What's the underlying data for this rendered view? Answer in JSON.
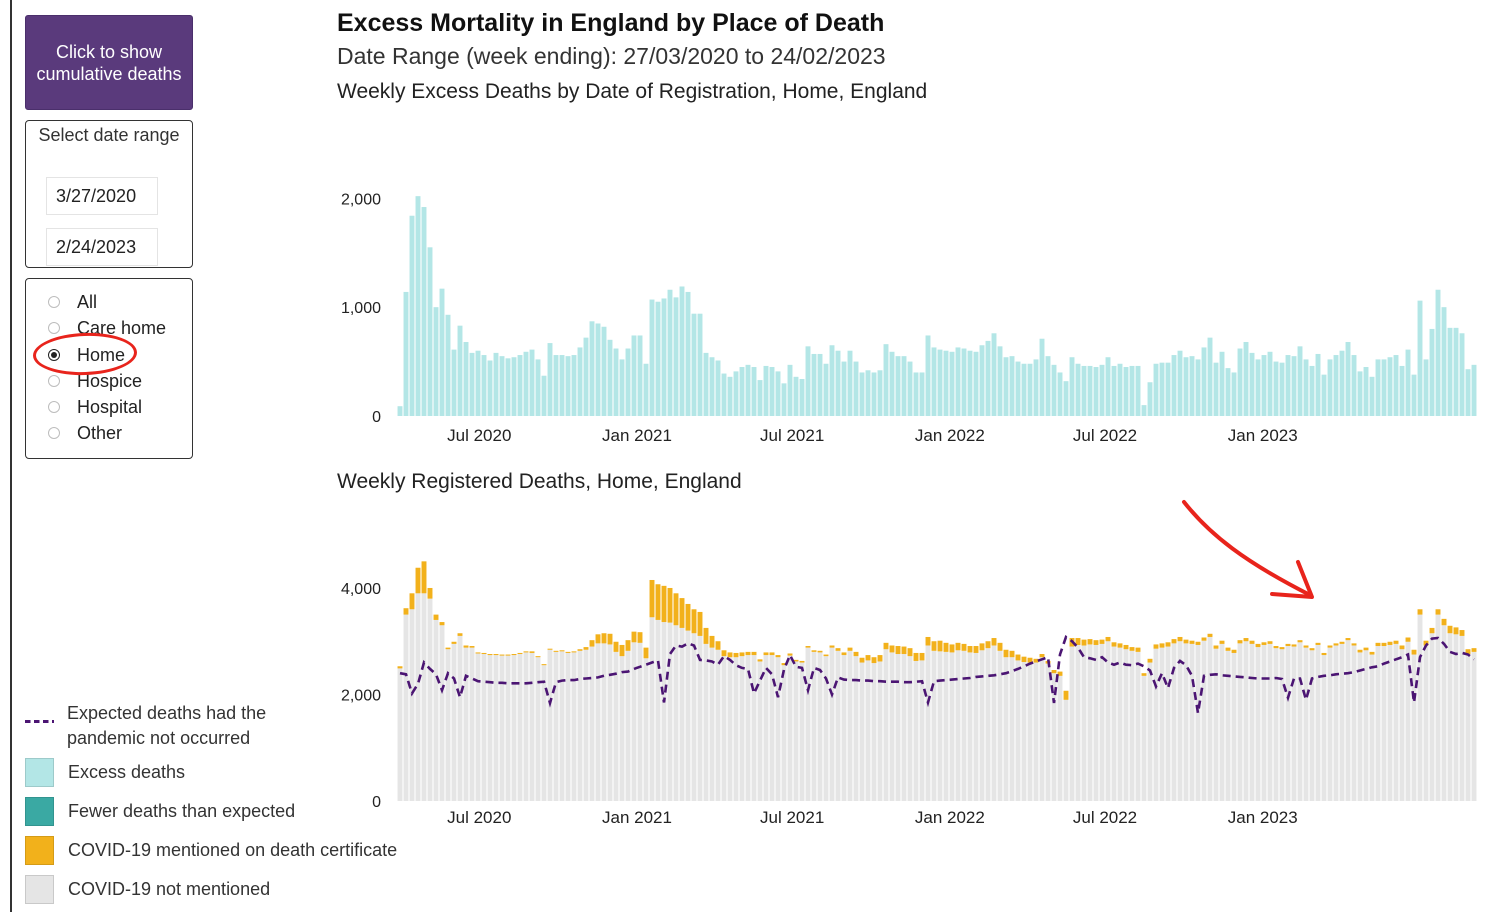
{
  "controls": {
    "cumulative_button": "Click to show cumulative deaths",
    "date_range_label": "Select date range",
    "start_date": "3/27/2020",
    "end_date": "2/24/2023",
    "places": [
      "All",
      "Care home",
      "Home",
      "Hospice",
      "Hospital",
      "Other"
    ],
    "selected_place": "Home"
  },
  "header": {
    "title": "Excess Mortality in England by Place of Death",
    "subtitle": "Date Range (week ending): 27/03/2020 to 24/02/2023"
  },
  "colors": {
    "button_purple": "#5a3a7c",
    "excess": "#b3e6e6",
    "fewer": "#3aa9a3",
    "covid": "#f2b11b",
    "not_covid": "#e5e5e5",
    "expected_line": "#4b1573",
    "annotation_red": "#e8241c"
  },
  "legend": {
    "expected": "Expected deaths had the pandemic not occurred",
    "excess": "Excess deaths",
    "fewer": "Fewer deaths than expected",
    "covid": "COVID-19 mentioned on death certificate",
    "not_covid": "COVID-19 not mentioned"
  },
  "chart_data": [
    {
      "type": "bar",
      "title": "Weekly Excess Deaths by Date of Registration, Home, England",
      "x_start": "2020-03-27",
      "x_interval": "weekly",
      "x_ticks": [
        "Jul 2020",
        "Jan 2021",
        "Jul 2021",
        "Jan 2022",
        "Jul 2022",
        "Jan 2023"
      ],
      "y_ticks": [
        "0",
        "1,000",
        "2,000"
      ],
      "ylim": [
        0,
        2150
      ],
      "values": [
        90,
        1140,
        1840,
        2020,
        1920,
        1550,
        1000,
        1170,
        930,
        610,
        830,
        680,
        580,
        600,
        560,
        510,
        580,
        550,
        530,
        540,
        560,
        590,
        610,
        520,
        370,
        670,
        560,
        560,
        550,
        560,
        630,
        720,
        870,
        850,
        820,
        700,
        620,
        520,
        620,
        740,
        740,
        480,
        1070,
        1050,
        1080,
        1160,
        1090,
        1190,
        1140,
        940,
        940,
        580,
        540,
        510,
        390,
        360,
        410,
        450,
        470,
        450,
        330,
        460,
        450,
        410,
        300,
        470,
        360,
        340,
        640,
        570,
        570,
        480,
        650,
        600,
        500,
        600,
        500,
        400,
        420,
        400,
        420,
        660,
        590,
        550,
        550,
        500,
        400,
        400,
        740,
        630,
        610,
        600,
        590,
        630,
        620,
        600,
        590,
        650,
        690,
        760,
        640,
        540,
        550,
        500,
        480,
        480,
        520,
        710,
        550,
        470,
        400,
        320,
        540,
        480,
        460,
        460,
        450,
        470,
        540,
        460,
        480,
        450,
        460,
        460,
        100,
        310,
        480,
        490,
        490,
        560,
        600,
        540,
        550,
        520,
        630,
        720,
        490,
        590,
        440,
        400,
        620,
        680,
        580,
        520,
        560,
        590,
        500,
        490,
        560,
        550,
        640,
        520,
        460,
        570,
        380,
        520,
        560,
        600,
        680,
        560,
        410,
        450,
        360,
        520,
        520,
        540,
        560,
        460,
        610,
        380,
        1060,
        520,
        800,
        1160,
        1000,
        810,
        810,
        760,
        430,
        470
      ]
    },
    {
      "type": "bar",
      "title": "Weekly Registered Deaths, Home, England",
      "x_start": "2020-03-27",
      "x_interval": "weekly",
      "x_ticks": [
        "Jul 2020",
        "Jan 2021",
        "Jul 2021",
        "Jan 2022",
        "Jul 2022",
        "Jan 2023"
      ],
      "y_ticks": [
        "0",
        "2,000",
        "4,000"
      ],
      "ylim": [
        0,
        4300
      ],
      "series": [
        {
          "name": "COVID-19 not mentioned",
          "values": [
            2490,
            3500,
            3600,
            3900,
            3900,
            3800,
            3400,
            3300,
            2850,
            2950,
            3100,
            2880,
            2880,
            2770,
            2760,
            2740,
            2740,
            2730,
            2730,
            2740,
            2760,
            2790,
            2780,
            2700,
            2550,
            2840,
            2800,
            2810,
            2780,
            2790,
            2820,
            2840,
            2900,
            2960,
            2960,
            2940,
            2800,
            2720,
            2820,
            2980,
            2970,
            2680,
            3450,
            3400,
            3360,
            3350,
            3300,
            3250,
            3200,
            3150,
            3100,
            2950,
            2880,
            2840,
            2720,
            2700,
            2700,
            2720,
            2740,
            2740,
            2620,
            2740,
            2740,
            2700,
            2550,
            2730,
            2620,
            2600,
            2880,
            2800,
            2790,
            2720,
            2880,
            2820,
            2740,
            2820,
            2720,
            2600,
            2640,
            2590,
            2620,
            2850,
            2790,
            2760,
            2760,
            2720,
            2630,
            2640,
            2920,
            2820,
            2810,
            2800,
            2790,
            2830,
            2820,
            2790,
            2780,
            2830,
            2870,
            2920,
            2820,
            2700,
            2700,
            2640,
            2610,
            2600,
            2600,
            2700,
            2580,
            2400,
            2350,
            1900,
            2900,
            2930,
            2920,
            2940,
            2930,
            2950,
            3000,
            2900,
            2880,
            2850,
            2820,
            2800,
            2350,
            2600,
            2860,
            2880,
            2900,
            2960,
            3000,
            2960,
            2950,
            2930,
            3010,
            3080,
            2860,
            2950,
            2820,
            2780,
            2960,
            3000,
            2950,
            2890,
            2930,
            2950,
            2870,
            2850,
            2910,
            2900,
            2980,
            2880,
            2830,
            2930,
            2740,
            2880,
            2920,
            2950,
            3020,
            2920,
            2790,
            2830,
            2750,
            2910,
            2910,
            2930,
            2950,
            2850,
            2990,
            2750,
            3500,
            2920,
            3150,
            3500,
            3300,
            3150,
            3130,
            3100,
            2760,
            2800
          ]
        },
        {
          "name": "COVID-19 mentioned on death certificate",
          "values": [
            40,
            120,
            300,
            480,
            600,
            200,
            100,
            60,
            30,
            40,
            50,
            40,
            30,
            20,
            20,
            20,
            20,
            20,
            20,
            20,
            20,
            20,
            30,
            20,
            20,
            20,
            20,
            20,
            20,
            20,
            30,
            50,
            120,
            170,
            190,
            200,
            190,
            210,
            200,
            200,
            200,
            200,
            700,
            670,
            680,
            650,
            600,
            560,
            500,
            450,
            450,
            300,
            220,
            160,
            110,
            90,
            80,
            70,
            60,
            60,
            40,
            50,
            50,
            40,
            40,
            40,
            30,
            30,
            30,
            30,
            30,
            30,
            40,
            50,
            50,
            60,
            80,
            90,
            100,
            110,
            120,
            120,
            130,
            150,
            140,
            150,
            150,
            140,
            160,
            180,
            200,
            170,
            150,
            140,
            130,
            120,
            130,
            130,
            130,
            140,
            150,
            140,
            120,
            110,
            100,
            90,
            70,
            60,
            50,
            60,
            80,
            170,
            160,
            130,
            110,
            100,
            90,
            80,
            80,
            80,
            80,
            80,
            70,
            80,
            50,
            70,
            80,
            80,
            80,
            80,
            80,
            70,
            60,
            60,
            60,
            60,
            60,
            60,
            60,
            60,
            60,
            60,
            60,
            60,
            50,
            50,
            40,
            40,
            40,
            40,
            40,
            40,
            40,
            40,
            40,
            40,
            40,
            40,
            40,
            40,
            50,
            50,
            50,
            60,
            60,
            60,
            60,
            70,
            80,
            90,
            100,
            90,
            100,
            100,
            120,
            140,
            130,
            110,
            90,
            70
          ]
        },
        {
          "name": "Expected deaths had the pandemic not occurred",
          "values": [
            2400,
            2380,
            2020,
            2200,
            2600,
            2480,
            2380,
            2080,
            2400,
            2300,
            1950,
            2350,
            2300,
            2250,
            2240,
            2230,
            2220,
            2220,
            2210,
            2210,
            2210,
            2210,
            2220,
            2230,
            2240,
            1840,
            2230,
            2260,
            2270,
            2270,
            2290,
            2300,
            2310,
            2320,
            2350,
            2370,
            2390,
            2420,
            2430,
            2480,
            2520,
            2560,
            2600,
            2640,
            1850,
            2760,
            2920,
            2900,
            2960,
            2920,
            2650,
            2640,
            2620,
            2560,
            2720,
            2650,
            2550,
            2500,
            2480,
            2020,
            2260,
            2500,
            2380,
            1950,
            2470,
            2740,
            2520,
            2500,
            2080,
            2500,
            2460,
            2300,
            2000,
            2320,
            2280,
            2270,
            2270,
            2260,
            2260,
            2250,
            2250,
            2240,
            2240,
            2240,
            2230,
            2230,
            2240,
            2250,
            1850,
            2250,
            2260,
            2270,
            2280,
            2290,
            2300,
            2310,
            2330,
            2340,
            2350,
            2360,
            2380,
            2400,
            2440,
            2480,
            2530,
            2580,
            2620,
            2660,
            2700,
            1840,
            2750,
            3080,
            3000,
            2880,
            2700,
            2680,
            2650,
            2700,
            2600,
            2560,
            2600,
            2560,
            2550,
            2580,
            2530,
            2450,
            2150,
            2400,
            2120,
            2500,
            2630,
            2550,
            2350,
            1650,
            2350,
            2370,
            2380,
            2360,
            2350,
            2340,
            2330,
            2320,
            2310,
            2300,
            2300,
            2300,
            2310,
            2290,
            1940,
            2300,
            2300,
            1900,
            2300,
            2330,
            2350,
            2360,
            2380,
            2390,
            2400,
            2420,
            2450,
            2480,
            2510,
            2530,
            2580,
            2620,
            2660,
            2700,
            2750,
            1850,
            2700,
            2920,
            3050,
            3060,
            2950,
            2800,
            2760,
            2780,
            2750,
            2660
          ]
        }
      ]
    }
  ]
}
